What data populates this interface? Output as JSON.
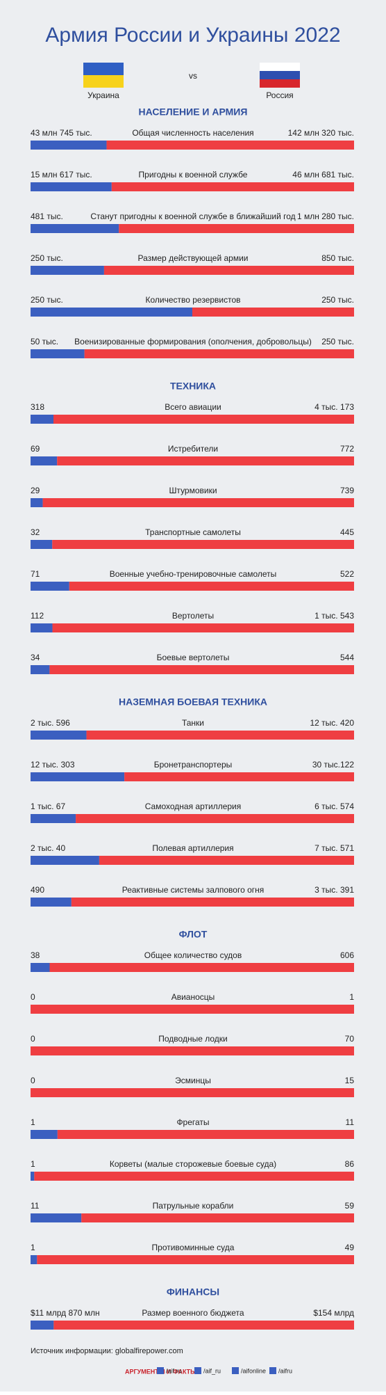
{
  "title": "Армия России и Украины 2022",
  "sides": {
    "left": "Украина",
    "vs": "vs",
    "right": "Россия"
  },
  "sections": [
    {
      "title": "НАСЕЛЕНИЕ И АРМИЯ",
      "rows": [
        {
          "label": "Общая численность населения",
          "ukraine": {
            "value": 43745000,
            "label": "43 млн 745 тыс."
          },
          "russia": {
            "value": 142320000,
            "label": "142 млн 320 тыс."
          }
        },
        {
          "label": "Пригодны к военной службе",
          "ukraine": {
            "value": 15617000,
            "label": "15 млн 617 тыс."
          },
          "russia": {
            "value": 46681000,
            "label": "46 млн 681 тыс."
          }
        },
        {
          "label": "Станут пригодны к военной службе в ближайший год",
          "ukraine": {
            "value": 481000,
            "label": "481 тыс."
          },
          "russia": {
            "value": 1280000,
            "label": "1 млн 280 тыс."
          }
        },
        {
          "label": "Размер действующей армии",
          "ukraine": {
            "value": 250000,
            "label": "250 тыс."
          },
          "russia": {
            "value": 850000,
            "label": "850 тыс."
          }
        },
        {
          "label": "Количество резервистов",
          "ukraine": {
            "value": 250000,
            "label": "250 тыс."
          },
          "russia": {
            "value": 250000,
            "label": "250 тыс."
          }
        },
        {
          "label": "Военизированные формирования (ополчения, добровольцы)",
          "ukraine": {
            "value": 50000,
            "label": "50 тыс."
          },
          "russia": {
            "value": 250000,
            "label": "250 тыс."
          }
        }
      ]
    },
    {
      "title": "ТЕХНИКА",
      "rows": [
        {
          "label": "Всего авиации",
          "ukraine": 318,
          "russia": {
            "value": 4173,
            "label": "4 тыс. 173"
          }
        },
        {
          "label": "Истребители",
          "ukraine": 69,
          "russia": 772
        },
        {
          "label": "Штурмовики",
          "ukraine": 29,
          "russia": 739
        },
        {
          "label": "Транспортные самолеты",
          "ukraine": 32,
          "russia": 445
        },
        {
          "label": "Военные учебно-тренировочные самолеты",
          "ukraine": 71,
          "russia": 522
        },
        {
          "label": "Вертолеты",
          "ukraine": 112,
          "russia": {
            "value": 1543,
            "label": "1 тыс. 543"
          }
        },
        {
          "label": "Боевые вертолеты",
          "ukraine": 34,
          "russia": 544
        }
      ]
    },
    {
      "title": "НАЗЕМНАЯ БОЕВАЯ ТЕХНИКА",
      "rows": [
        {
          "label": "Танки",
          "ukraine": {
            "value": 2596,
            "label": "2 тыс. 596"
          },
          "russia": {
            "value": 12420,
            "label": "12 тыс. 420"
          }
        },
        {
          "label": "Бронетранспортеры",
          "ukraine": {
            "value": 12303,
            "label": "12 тыс. 303"
          },
          "russia": {
            "value": 30122,
            "label": "30 тыс.122"
          }
        },
        {
          "label": "Самоходная артиллерия",
          "ukraine": {
            "value": 1067,
            "label": "1 тыс. 67"
          },
          "russia": {
            "value": 6574,
            "label": "6 тыс. 574"
          }
        },
        {
          "label": "Полевая артиллерия",
          "ukraine": {
            "value": 2040,
            "label": "2 тыс. 40"
          },
          "russia": {
            "value": 7571,
            "label": "7 тыс. 571"
          }
        },
        {
          "label": "Реактивные системы залпового огня",
          "ukraine": 490,
          "russia": {
            "value": 3391,
            "label": "3 тыс. 391"
          }
        }
      ]
    },
    {
      "title": "ФЛОТ",
      "rows": [
        {
          "label": "Общее количество судов",
          "ukraine": 38,
          "russia": 606
        },
        {
          "label": "Авианосцы",
          "ukraine": 0,
          "russia": 1
        },
        {
          "label": "Подводные лодки",
          "ukraine": 0,
          "russia": 70
        },
        {
          "label": "Эсминцы",
          "ukraine": 0,
          "russia": 15
        },
        {
          "label": "Фрегаты",
          "ukraine": 1,
          "russia": 11
        },
        {
          "label": "Корветы (малые сторожевые боевые суда)",
          "ukraine": 1,
          "russia": 86
        },
        {
          "label": "Патрульные корабли",
          "ukraine": 11,
          "russia": 59
        },
        {
          "label": "Противоминные суда",
          "ukraine": 1,
          "russia": 49
        }
      ]
    },
    {
      "title": "ФИНАНСЫ",
      "rows": [
        {
          "label": "Размер военного бюджета",
          "ukraine": {
            "value": 11870000000,
            "label": "$11 млрд 870 млн"
          },
          "russia": {
            "value": 154000000000,
            "label": "$154 млрд"
          }
        }
      ]
    }
  ],
  "source": "Источник информации: globalfirepower.com",
  "footer": {
    "logo": "АРГУМЕНТЫ И ФАКТЫ",
    "links": [
      "/aif.ru",
      "/aif_ru",
      "/aifonline",
      "/aifru"
    ]
  }
}
